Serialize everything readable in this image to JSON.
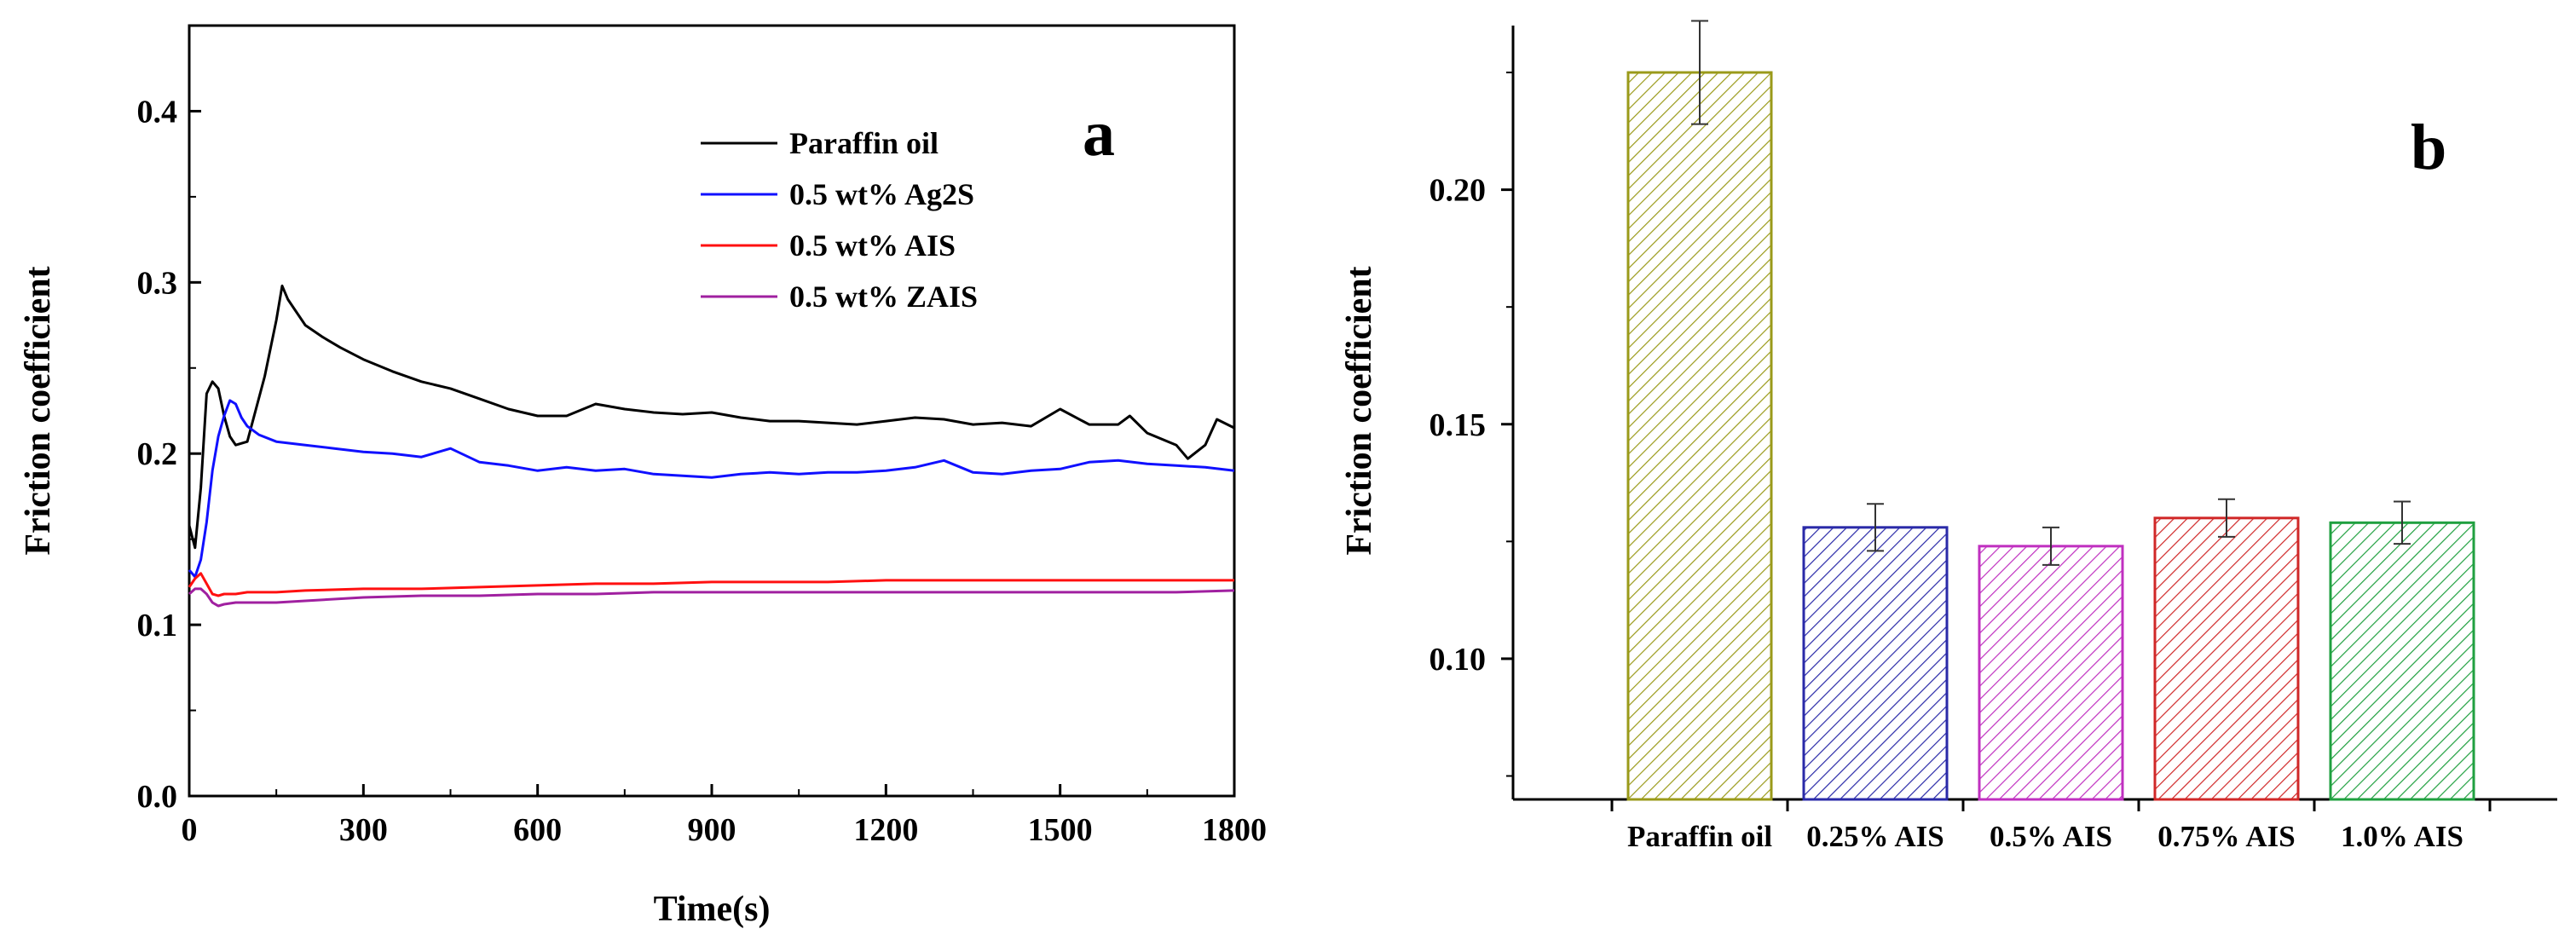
{
  "chart_data": [
    {
      "panel_label": "a",
      "type": "line",
      "xlabel": "Time(s)",
      "ylabel": "Friction coefficient",
      "xlim": [
        0,
        1800
      ],
      "ylim": [
        0.0,
        0.45
      ],
      "xticks": [
        0,
        300,
        600,
        900,
        1200,
        1500,
        1800
      ],
      "xtick_labels": [
        "0",
        "300",
        "600",
        "900",
        "1200",
        "1500",
        "1800"
      ],
      "yticks": [
        0.0,
        0.1,
        0.2,
        0.3,
        0.4
      ],
      "ytick_labels": [
        "0.0",
        "0.1",
        "0.2",
        "0.3",
        "0.4"
      ],
      "legend_position": "top-right",
      "series": [
        {
          "name": "Paraffin oil",
          "color": "#000000",
          "x": [
            0,
            10,
            20,
            30,
            40,
            50,
            60,
            70,
            80,
            100,
            130,
            150,
            160,
            170,
            180,
            200,
            230,
            260,
            300,
            350,
            400,
            450,
            500,
            550,
            600,
            650,
            700,
            750,
            800,
            850,
            900,
            950,
            1000,
            1050,
            1100,
            1150,
            1200,
            1250,
            1300,
            1350,
            1400,
            1450,
            1500,
            1550,
            1600,
            1620,
            1650,
            1700,
            1720,
            1750,
            1770,
            1800
          ],
          "y": [
            0.158,
            0.145,
            0.18,
            0.235,
            0.242,
            0.238,
            0.222,
            0.21,
            0.205,
            0.207,
            0.245,
            0.278,
            0.298,
            0.29,
            0.285,
            0.275,
            0.268,
            0.262,
            0.255,
            0.248,
            0.242,
            0.238,
            0.232,
            0.226,
            0.222,
            0.222,
            0.229,
            0.226,
            0.224,
            0.223,
            0.224,
            0.221,
            0.219,
            0.219,
            0.218,
            0.217,
            0.219,
            0.221,
            0.22,
            0.217,
            0.218,
            0.216,
            0.226,
            0.217,
            0.217,
            0.222,
            0.212,
            0.205,
            0.197,
            0.205,
            0.22,
            0.215
          ]
        },
        {
          "name": "0.5 wt% Ag2S",
          "color": "#1010ff",
          "x": [
            0,
            10,
            20,
            30,
            40,
            50,
            60,
            70,
            80,
            90,
            100,
            120,
            150,
            200,
            250,
            300,
            350,
            400,
            450,
            500,
            550,
            600,
            650,
            700,
            750,
            800,
            850,
            900,
            950,
            1000,
            1050,
            1100,
            1150,
            1200,
            1250,
            1300,
            1350,
            1400,
            1450,
            1500,
            1550,
            1600,
            1650,
            1700,
            1750,
            1800
          ],
          "y": [
            0.132,
            0.128,
            0.138,
            0.16,
            0.19,
            0.21,
            0.222,
            0.231,
            0.229,
            0.221,
            0.216,
            0.211,
            0.207,
            0.205,
            0.203,
            0.201,
            0.2,
            0.198,
            0.203,
            0.195,
            0.193,
            0.19,
            0.192,
            0.19,
            0.191,
            0.188,
            0.187,
            0.186,
            0.188,
            0.189,
            0.188,
            0.189,
            0.189,
            0.19,
            0.192,
            0.196,
            0.189,
            0.188,
            0.19,
            0.191,
            0.195,
            0.196,
            0.194,
            0.193,
            0.192,
            0.19
          ]
        },
        {
          "name": "0.5 wt% AIS",
          "color": "#ff1010",
          "x": [
            0,
            10,
            20,
            30,
            40,
            50,
            60,
            80,
            100,
            150,
            200,
            300,
            400,
            500,
            600,
            700,
            800,
            900,
            1000,
            1100,
            1200,
            1300,
            1400,
            1500,
            1600,
            1700,
            1800
          ],
          "y": [
            0.122,
            0.127,
            0.13,
            0.124,
            0.118,
            0.117,
            0.118,
            0.118,
            0.119,
            0.119,
            0.12,
            0.121,
            0.121,
            0.122,
            0.123,
            0.124,
            0.124,
            0.125,
            0.125,
            0.125,
            0.126,
            0.126,
            0.126,
            0.126,
            0.126,
            0.126,
            0.126
          ]
        },
        {
          "name": "0.5 wt% ZAIS",
          "color": "#a020a0",
          "x": [
            0,
            10,
            20,
            30,
            40,
            50,
            60,
            80,
            100,
            150,
            200,
            300,
            400,
            500,
            600,
            700,
            800,
            900,
            1000,
            1100,
            1200,
            1300,
            1400,
            1500,
            1600,
            1700,
            1800
          ],
          "y": [
            0.118,
            0.121,
            0.121,
            0.118,
            0.113,
            0.111,
            0.112,
            0.113,
            0.113,
            0.113,
            0.114,
            0.116,
            0.117,
            0.117,
            0.118,
            0.118,
            0.119,
            0.119,
            0.119,
            0.119,
            0.119,
            0.119,
            0.119,
            0.119,
            0.119,
            0.119,
            0.12
          ]
        }
      ]
    },
    {
      "panel_label": "b",
      "type": "bar",
      "ylabel": "Friction coefficient",
      "categories": [
        "Paraffin oil",
        "0.25% AIS",
        "0.5% AIS",
        "0.75% AIS",
        "1.0% AIS"
      ],
      "values": [
        0.225,
        0.128,
        0.124,
        0.13,
        0.129
      ],
      "errors": [
        0.011,
        0.005,
        0.004,
        0.004,
        0.0045
      ],
      "colors": [
        "#9a9a1a",
        "#2a2aa8",
        "#c030c0",
        "#d02828",
        "#20a040"
      ],
      "ylim": [
        0.07,
        0.235
      ],
      "yticks": [
        0.1,
        0.15,
        0.2
      ],
      "ytick_labels": [
        "0.10",
        "0.15",
        "0.20"
      ],
      "bar_fill": "diagonal-hatch"
    }
  ]
}
